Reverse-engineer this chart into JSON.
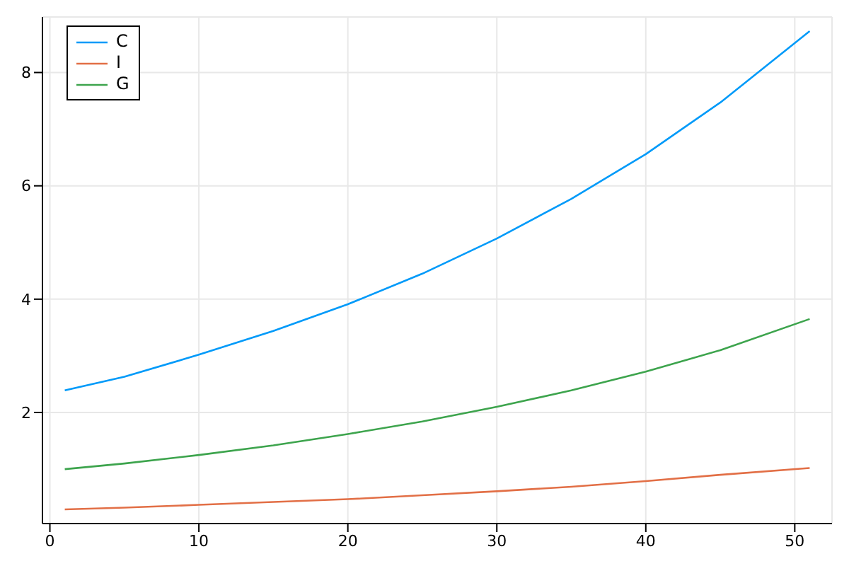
{
  "chart_data": {
    "type": "line",
    "x": [
      1,
      5,
      10,
      15,
      20,
      25,
      30,
      35,
      40,
      45,
      51
    ],
    "series": [
      {
        "name": "C",
        "color": "#009af9",
        "values": [
          2.39,
          2.63,
          3.02,
          3.44,
          3.91,
          4.45,
          5.07,
          5.77,
          6.56,
          7.47,
          8.73
        ]
      },
      {
        "name": "I",
        "color": "#e26f46",
        "values": [
          0.29,
          0.32,
          0.37,
          0.42,
          0.47,
          0.54,
          0.61,
          0.69,
          0.79,
          0.9,
          1.02
        ]
      },
      {
        "name": "G",
        "color": "#3da44d",
        "values": [
          1.0,
          1.1,
          1.25,
          1.42,
          1.62,
          1.84,
          2.1,
          2.39,
          2.72,
          3.1,
          3.65
        ]
      }
    ],
    "xlim": [
      -0.5,
      52.5
    ],
    "xticks": [
      0,
      10,
      20,
      30,
      40,
      50
    ],
    "ylim": [
      0.04,
      8.98
    ],
    "yticks": [
      2,
      4,
      6,
      8
    ],
    "grid": true,
    "legend": "top left",
    "marker": "none",
    "line_style": "solid"
  }
}
